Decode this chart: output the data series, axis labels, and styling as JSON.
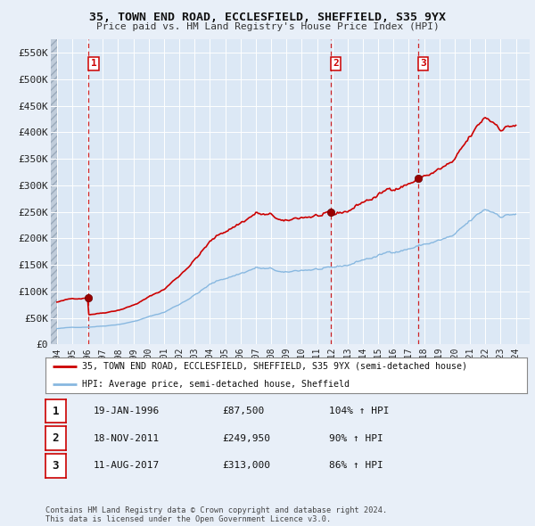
{
  "title": "35, TOWN END ROAD, ECCLESFIELD, SHEFFIELD, S35 9YX",
  "subtitle": "Price paid vs. HM Land Registry's House Price Index (HPI)",
  "ylim": [
    0,
    575000
  ],
  "yticks": [
    0,
    50000,
    100000,
    150000,
    200000,
    250000,
    300000,
    350000,
    400000,
    450000,
    500000,
    550000
  ],
  "ytick_labels": [
    "£0",
    "£50K",
    "£100K",
    "£150K",
    "£200K",
    "£250K",
    "£300K",
    "£350K",
    "£400K",
    "£450K",
    "£500K",
    "£550K"
  ],
  "bg_color": "#e8eff8",
  "plot_bg_color": "#dce8f5",
  "grid_color": "#ffffff",
  "purchases": [
    {
      "date_num": 1996.05,
      "price": 87500,
      "label": "1"
    },
    {
      "date_num": 2011.88,
      "price": 249950,
      "label": "2"
    },
    {
      "date_num": 2017.61,
      "price": 313000,
      "label": "3"
    }
  ],
  "vline_dates": [
    1996.05,
    2011.88,
    2017.61
  ],
  "legend_house_label": "35, TOWN END ROAD, ECCLESFIELD, SHEFFIELD, S35 9YX (semi-detached house)",
  "legend_hpi_label": "HPI: Average price, semi-detached house, Sheffield",
  "table_rows": [
    {
      "num": "1",
      "date": "19-JAN-1996",
      "price": "£87,500",
      "pct": "104% ↑ HPI"
    },
    {
      "num": "2",
      "date": "18-NOV-2011",
      "price": "£249,950",
      "pct": "90% ↑ HPI"
    },
    {
      "num": "3",
      "date": "11-AUG-2017",
      "price": "£313,000",
      "pct": "86% ↑ HPI"
    }
  ],
  "footer": "Contains HM Land Registry data © Crown copyright and database right 2024.\nThis data is licensed under the Open Government Licence v3.0.",
  "house_line_color": "#cc0000",
  "hpi_line_color": "#88b8e0",
  "dot_color": "#990000",
  "vline_color": "#cc0000",
  "hatch_face_color": "#c8d4e0",
  "xlim_left": 1993.6,
  "xlim_right": 2024.9
}
